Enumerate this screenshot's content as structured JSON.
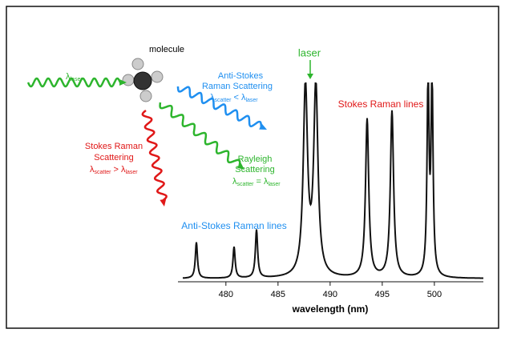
{
  "molecule": "molecule",
  "incident": [
    {
      "text": "λ"
    },
    {
      "sub": "laser"
    }
  ],
  "anti_stokes_scattering": {
    "lines": [
      "Anti-Stokes",
      "Raman Scattering"
    ],
    "relation": [
      {
        "text": "λ"
      },
      {
        "sub": "scatter"
      },
      {
        "text": "<"
      },
      {
        "text": "λ"
      },
      {
        "sub": "laser"
      }
    ]
  },
  "stokes_scattering": {
    "lines": [
      "Stokes Raman",
      "Scattering"
    ],
    "relation": [
      {
        "text": "λ"
      },
      {
        "sub": "scatter"
      },
      {
        "text": ">"
      },
      {
        "text": "λ"
      },
      {
        "sub": "laser"
      }
    ]
  },
  "rayleigh_scattering": {
    "lines": [
      "Rayleigh",
      "Scattering"
    ],
    "relation": [
      {
        "text": "λ"
      },
      {
        "sub": "scatter"
      },
      {
        "text": "="
      },
      {
        "text": "λ"
      },
      {
        "sub": "laser"
      }
    ]
  },
  "spectrum": {
    "laser_label": "laser",
    "stokes_label": "Stokes Raman lines",
    "anti_stokes_label": "Anti-Stokes Raman lines",
    "xlabel": "wavelength (nm)",
    "xlim": [
      475.4,
      504.7
    ],
    "xticks": [
      480,
      485,
      490,
      495,
      500
    ]
  }
}
